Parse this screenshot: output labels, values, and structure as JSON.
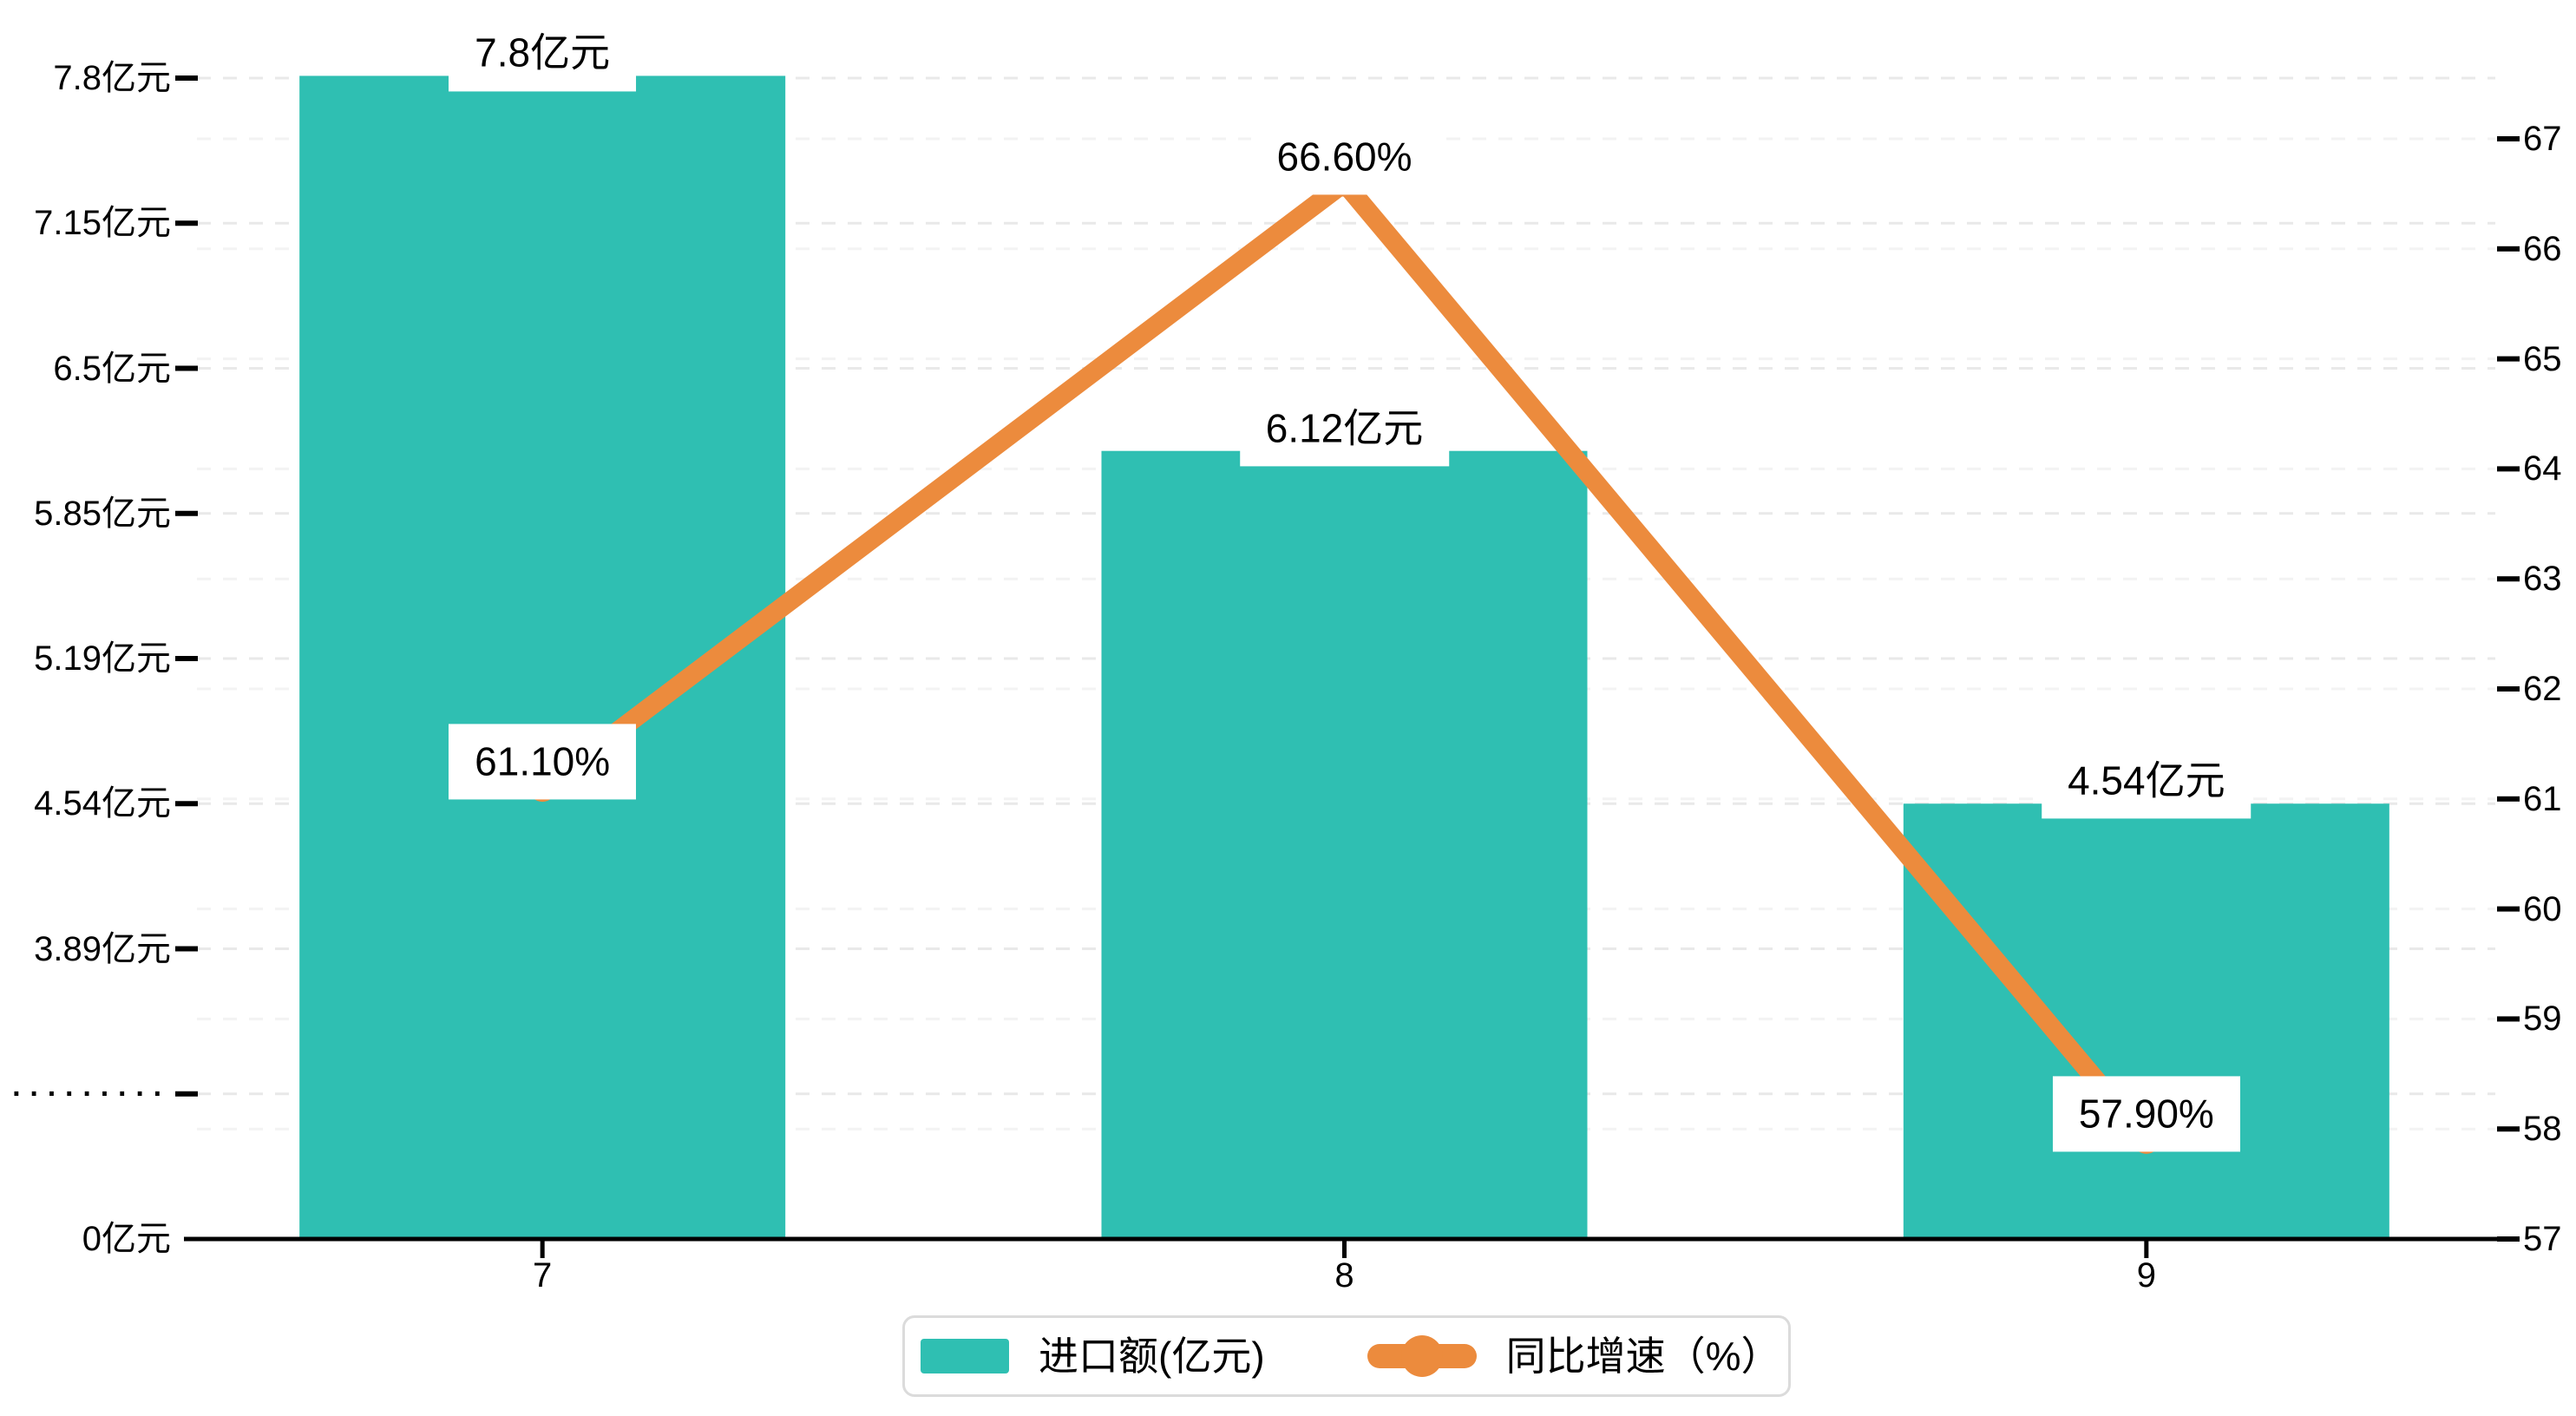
{
  "chart_data": {
    "type": "bar",
    "categories": [
      "7",
      "8",
      "9"
    ],
    "series": [
      {
        "name": "进口额(亿元)",
        "type": "bar",
        "axis": "left",
        "values": [
          7.8,
          6.12,
          4.54
        ],
        "labels": [
          "7.8亿元",
          "6.12亿元",
          "4.54亿元"
        ],
        "color": "#2FBFB2"
      },
      {
        "name": "同比增速（%）",
        "type": "line",
        "axis": "right",
        "values": [
          61.1,
          66.6,
          57.9
        ],
        "labels": [
          "61.10%",
          "66.60%",
          "57.90%"
        ],
        "color": "#EC8B3D"
      }
    ],
    "left_axis": {
      "unit": "亿元",
      "has_break": true,
      "tick_labels": [
        "0亿元",
        "·········",
        "3.89亿元",
        "4.54亿元",
        "5.19亿元",
        "5.85亿元",
        "6.5亿元",
        "7.15亿元",
        "7.8亿元"
      ],
      "tick_values": [
        0,
        null,
        3.89,
        4.54,
        5.19,
        5.85,
        6.5,
        7.15,
        7.8
      ],
      "tick_step": 0.65
    },
    "right_axis": {
      "min": 57,
      "max": 67,
      "tick_labels": [
        "57",
        "58",
        "59",
        "60",
        "61",
        "62",
        "63",
        "64",
        "65",
        "66",
        "67"
      ]
    },
    "grid": true,
    "legend_position": "bottom",
    "legend": [
      "进口额(亿元)",
      "同比增速（%）"
    ]
  },
  "colors": {
    "bar": "#2FBFB2",
    "line": "#EC8B3D",
    "axis": "#000000",
    "grid_left": "#E9E9E9",
    "grid_right": "#F3F3F3",
    "label_bg": "#FFFFFF",
    "legend_border": "#DBDBDB",
    "text": "#000000"
  }
}
